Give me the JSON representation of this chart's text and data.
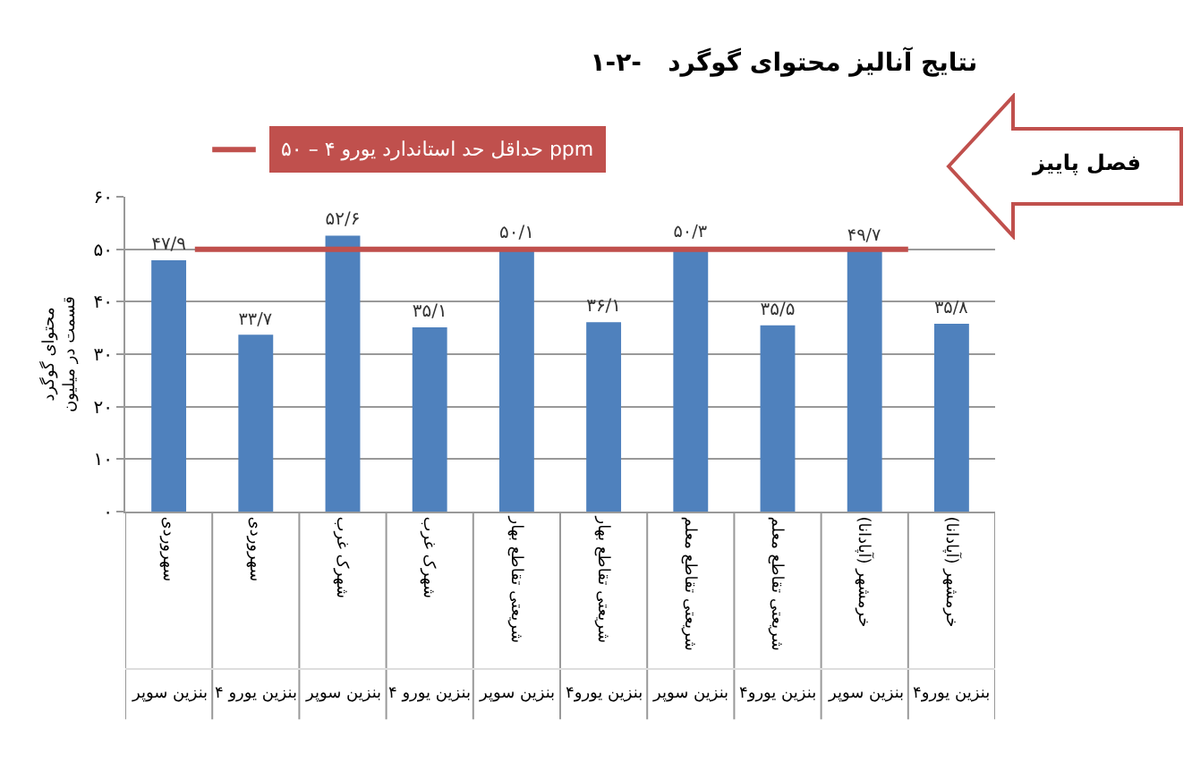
{
  "chart_data": {
    "type": "bar",
    "title": "۱-۲-   نتایج آنالیز محتوای گوگرد",
    "ylabel": "محتوای گوگرد\nقسمت در میلیون",
    "categories": [
      "سهروردی\nبنزین سوپر",
      "سهروردی\nبنزین یورو ۴",
      "شهرک غرب\nبنزین سوپر",
      "شهرک غرب\nبنزین یورو ۴",
      "شریعتی تقاطع بهار\nبنزین سوپر",
      "شریعتی تقاطع بهار\nبنزین یورو۴",
      "شریعتی تقاطع معلم\nبنزین سوپر",
      "شریعتی تقاطع معلم\nبنزین یورو۴",
      "خرمشهر (آپادانا)\nبنزین سوپر",
      "خرمشهر (آپادانا)\nبنزین یورو۴"
    ],
    "values": [
      47.9,
      33.7,
      52.6,
      35.1,
      50.1,
      36.1,
      50.3,
      35.5,
      49.7,
      35.8
    ],
    "value_labels": [
      "۴۷/۹",
      "۳۳/۷",
      "۵۲/۶",
      "۳۵/۱",
      "۵۰/۱",
      "۳۶/۱",
      "۵۰/۳",
      "۳۵/۵",
      "۴۹/۷",
      "۳۵/۸"
    ],
    "color": "#4f81bd",
    "ylim": [
      0,
      60
    ],
    "yticks": [
      {
        "value": 0,
        "label": "۰"
      },
      {
        "value": 10,
        "label": "۱۰"
      },
      {
        "value": 20,
        "label": "۲۰"
      },
      {
        "value": 30,
        "label": "۳۰"
      },
      {
        "value": 40,
        "label": "۴۰"
      },
      {
        "value": 50,
        "label": "۵۰"
      },
      {
        "value": 60,
        "label": "۶۰"
      }
    ],
    "grid": "y",
    "ref_lines": [
      {
        "axis": "y",
        "value": 50,
        "label": "حداقل حد استاندارد یورو ۴ – ۵۰ ppm",
        "color": "#c0504d"
      }
    ],
    "annotations": [
      "فصل پاییز"
    ]
  }
}
